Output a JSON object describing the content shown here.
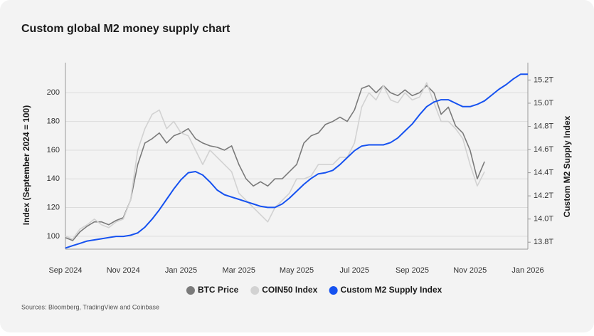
{
  "chart_data": {
    "type": "line",
    "title": "Custom global M2 money supply chart",
    "source": "Sources: Bloomberg, TradingView and Coinbase",
    "ylabel": "Index (September 2024 = 100)",
    "y2label": "Custom M2 Supply Index",
    "categories": [
      "Sep 2024",
      null,
      null,
      null,
      null,
      null,
      null,
      null,
      "Nov 2024",
      null,
      null,
      null,
      null,
      null,
      null,
      null,
      "Jan 2025",
      null,
      null,
      null,
      null,
      null,
      null,
      null,
      "Mar 2025",
      null,
      null,
      null,
      null,
      null,
      null,
      null,
      "May 2025",
      null,
      null,
      null,
      null,
      null,
      null,
      null,
      "Jul 2025",
      null,
      null,
      null,
      null,
      null,
      null,
      null,
      "Sep 2025",
      null,
      null,
      null,
      null,
      null,
      null,
      null,
      "Nov 2025",
      null,
      null,
      null,
      null,
      null,
      null,
      null,
      "Jan 2026"
    ],
    "series": [
      {
        "name": "BTC Price",
        "color": "#7a7a7a",
        "values": [
          99,
          97,
          103,
          107,
          110,
          110,
          108,
          111,
          113,
          125,
          150,
          165,
          168,
          172,
          165,
          170,
          172,
          175,
          168,
          165,
          163,
          162,
          160,
          163,
          150,
          140,
          135,
          138,
          135,
          140,
          140,
          145,
          150,
          165,
          170,
          172,
          178,
          180,
          183,
          180,
          188,
          203,
          205,
          200,
          205,
          200,
          198,
          202,
          198,
          200,
          205,
          200,
          185,
          190,
          177,
          172,
          160,
          140,
          152,
          null,
          null,
          null,
          null,
          null,
          null
        ]
      },
      {
        "name": "COIN50 Index",
        "color": "#d2d2d2",
        "values": [
          100,
          98,
          105,
          108,
          112,
          108,
          106,
          110,
          112,
          125,
          160,
          175,
          185,
          188,
          175,
          180,
          172,
          170,
          160,
          150,
          160,
          155,
          150,
          145,
          130,
          125,
          120,
          115,
          110,
          120,
          125,
          130,
          140,
          140,
          142,
          150,
          150,
          150,
          155,
          155,
          165,
          190,
          200,
          195,
          205,
          195,
          193,
          200,
          195,
          197,
          207,
          193,
          180,
          180,
          175,
          168,
          150,
          135,
          145,
          null,
          null,
          null,
          null,
          null,
          null
        ]
      },
      {
        "name": "Custom M2 Supply Index",
        "color": "#1652f0",
        "axis": "y2",
        "values": [
          13.75,
          13.77,
          13.79,
          13.81,
          13.82,
          13.83,
          13.84,
          13.85,
          13.85,
          13.86,
          13.88,
          13.93,
          14.0,
          14.08,
          14.17,
          14.26,
          14.34,
          14.4,
          14.41,
          14.38,
          14.32,
          14.25,
          14.21,
          14.19,
          14.17,
          14.15,
          14.13,
          14.11,
          14.1,
          14.1,
          14.13,
          14.18,
          14.24,
          14.3,
          14.35,
          14.39,
          14.4,
          14.42,
          14.47,
          14.53,
          14.59,
          14.63,
          14.64,
          14.64,
          14.64,
          14.66,
          14.7,
          14.76,
          14.82,
          14.9,
          14.97,
          15.01,
          15.03,
          15.03,
          15.0,
          14.97,
          14.97,
          14.99,
          15.02,
          15.07,
          15.12,
          15.16,
          15.21,
          15.25,
          15.25
        ]
      }
    ],
    "ylim": [
      91,
      221
    ],
    "yticks": [
      100,
      120,
      140,
      160,
      180,
      200
    ],
    "y2lim": [
      13.74,
      15.35
    ],
    "y2ticks": [
      {
        "value": 13.8,
        "label": "13.8T"
      },
      {
        "value": 14.0,
        "label": "14.0T"
      },
      {
        "value": 14.2,
        "label": "14.2T"
      },
      {
        "value": 14.4,
        "label": "14.4T"
      },
      {
        "value": 14.6,
        "label": "14.6T"
      },
      {
        "value": 14.8,
        "label": "14.8T"
      },
      {
        "value": 15.0,
        "label": "15.0T"
      },
      {
        "value": 15.2,
        "label": "15.2T"
      }
    ],
    "grid": true
  }
}
